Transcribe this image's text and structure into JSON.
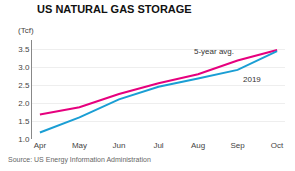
{
  "chart_data": {
    "type": "line",
    "title": "US NATURAL GAS STORAGE",
    "ylabel": "(Tcf)",
    "annotations": [
      "Source: US Energy Information Administration"
    ],
    "categories": [
      "Apr",
      "May",
      "Jun",
      "Jul",
      "Aug",
      "Sep",
      "Oct"
    ],
    "series": [
      {
        "name": "5-year avg.",
        "color": "#e6007e",
        "values": [
          1.68,
          1.88,
          2.25,
          2.55,
          2.8,
          3.18,
          3.47
        ]
      },
      {
        "name": "2019",
        "color": "#1a9ed4",
        "values": [
          1.18,
          1.6,
          2.1,
          2.45,
          2.68,
          2.92,
          3.44
        ]
      }
    ],
    "ylim": [
      1.0,
      3.75
    ],
    "yticks": [
      {
        "value": 1.0,
        "label": "1.0"
      },
      1.5,
      {
        "value": 2.0,
        "label": "2.0"
      },
      2.5,
      {
        "value": 3.0,
        "label": "3.0"
      },
      3.5
    ],
    "grid": true
  }
}
